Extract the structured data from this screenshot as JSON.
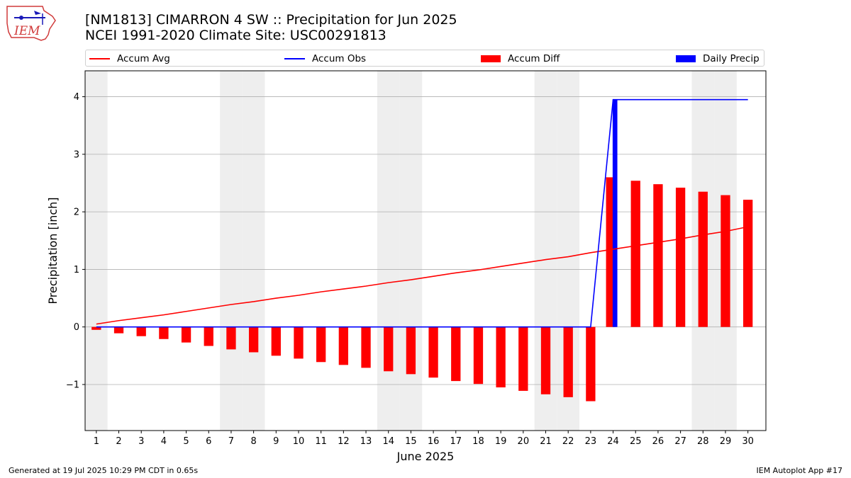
{
  "header": {
    "title_line1": "[NM1813] CIMARRON 4 SW :: Precipitation for Jun 2025",
    "title_line2": "NCEI 1991-2020 Climate Site: USC00291813",
    "logo_text": "IEM"
  },
  "footer": {
    "generated": "Generated at 19 Jul 2025 10:29 PM CDT in 0.65s",
    "app": "IEM Autoplot App #17"
  },
  "colors": {
    "accum_avg": "#ff0000",
    "accum_obs": "#0000ff",
    "accum_diff": "#ff0000",
    "daily_precip": "#0000ff",
    "weekend_shade": "#eeeeee",
    "grid": "#b0b0b0"
  },
  "chart_data": {
    "type": "bar",
    "xlabel": "June 2025",
    "ylabel": "Precipitation [inch]",
    "ylim": [
      -1.8,
      4.45
    ],
    "yticks": [
      -1,
      0,
      1,
      2,
      3,
      4
    ],
    "ytick_labels": [
      "−1",
      "0",
      "1",
      "2",
      "3",
      "4"
    ],
    "grid": "horizontal",
    "legend_position": "top, above plot",
    "weekend_days": [
      1,
      7,
      8,
      14,
      15,
      21,
      22,
      28,
      29
    ],
    "days": [
      1,
      2,
      3,
      4,
      5,
      6,
      7,
      8,
      9,
      10,
      11,
      12,
      13,
      14,
      15,
      16,
      17,
      18,
      19,
      20,
      21,
      22,
      23,
      24,
      25,
      26,
      27,
      28,
      29,
      30
    ],
    "series": [
      {
        "name": "Accum Avg",
        "type": "line",
        "values": [
          0.05,
          0.11,
          0.16,
          0.21,
          0.27,
          0.33,
          0.39,
          0.44,
          0.5,
          0.55,
          0.61,
          0.66,
          0.71,
          0.77,
          0.82,
          0.88,
          0.94,
          0.99,
          1.05,
          1.11,
          1.17,
          1.22,
          1.29,
          1.35,
          1.41,
          1.47,
          1.53,
          1.6,
          1.66,
          1.74
        ]
      },
      {
        "name": "Accum Obs",
        "type": "line",
        "values": [
          0,
          0,
          0,
          0,
          0,
          0,
          0,
          0,
          0,
          0,
          0,
          0,
          0,
          0,
          0,
          0,
          0,
          0,
          0,
          0,
          0,
          0,
          0,
          3.95,
          3.95,
          3.95,
          3.95,
          3.95,
          3.95,
          3.95
        ]
      },
      {
        "name": "Accum Diff",
        "type": "bar",
        "values": [
          -0.05,
          -0.11,
          -0.16,
          -0.21,
          -0.27,
          -0.33,
          -0.39,
          -0.44,
          -0.5,
          -0.55,
          -0.61,
          -0.66,
          -0.71,
          -0.77,
          -0.82,
          -0.88,
          -0.94,
          -0.99,
          -1.05,
          -1.11,
          -1.17,
          -1.22,
          -1.29,
          2.6,
          2.54,
          2.48,
          2.42,
          2.35,
          2.29,
          2.21
        ]
      },
      {
        "name": "Daily Precip",
        "type": "bar",
        "values": [
          0,
          0,
          0,
          0,
          0,
          0,
          0,
          0,
          0,
          0,
          0,
          0,
          0,
          0,
          0,
          0,
          0,
          0,
          0,
          0,
          0,
          0,
          0,
          3.95,
          0,
          0,
          0,
          0,
          0,
          0
        ]
      }
    ]
  }
}
